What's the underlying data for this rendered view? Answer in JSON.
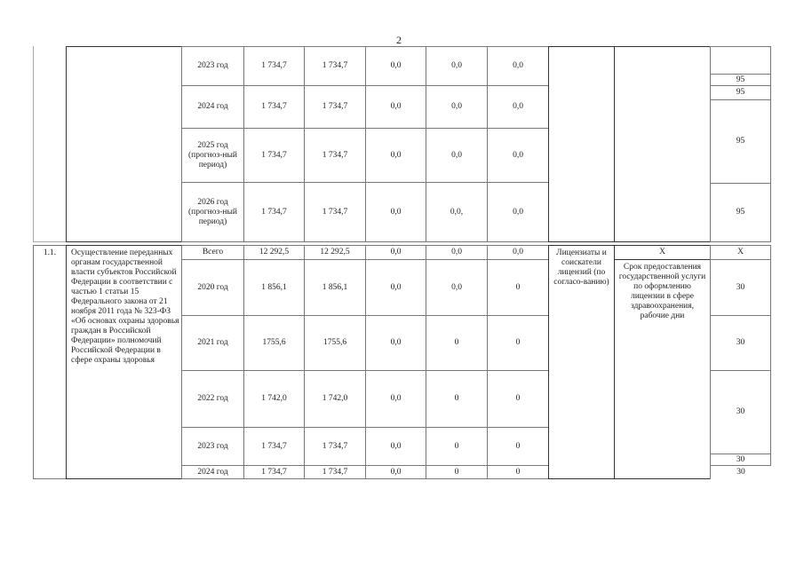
{
  "page_number": "2",
  "continued_section": {
    "rows": [
      {
        "year": "2023 год",
        "total": "1 734,7",
        "regional": "1 734,7",
        "c3": "0,0",
        "c4": "0,0",
        "c5": "0,0"
      },
      {
        "year": "2024 год",
        "total": "1 734,7",
        "regional": "1 734,7",
        "c3": "0,0",
        "c4": "0,0",
        "c5": "0,0"
      },
      {
        "year": "2025 год (прогноз-ный период)",
        "total": "1 734,7",
        "regional": "1 734,7",
        "c3": "0,0",
        "c4": "0,0",
        "c5": "0,0"
      },
      {
        "year": "2026 год (прогноз-ный период)",
        "total": "1 734,7",
        "regional": "1 734,7",
        "c3": "0,0",
        "c4": "0,0,",
        "c5": "0,0"
      }
    ],
    "indicator_values": [
      "",
      "95",
      "95",
      "95",
      "95"
    ]
  },
  "section_1_1": {
    "number": "1.1.",
    "description": "Осуществление переданных органам государственной власти субъектов Российской Федерации в соответствии с частью 1 статьи 15 Федерального закона от 21 ноября 2011 года № 323-ФЗ «Об основах охраны здоровья граждан в Российской Федерации» полномочий Российской Федерации в сфере охраны здоровья",
    "participants": "Лицензиаты и соискатели лицензий (по согласо-ванию)",
    "indicator_total": "Х",
    "indicator_name": "Срок предоставления государственной услуги по оформлению лицензии в сфере здравоохранения, рабочие дни",
    "rows": [
      {
        "year": "Всего",
        "total": "12 292,5",
        "regional": "12 292,5",
        "c3": "0,0",
        "c4": "0,0",
        "c5": "0,0"
      },
      {
        "year": "2020 год",
        "total": "1 856,1",
        "regional": "1 856,1",
        "c3": "0,0",
        "c4": "0,0",
        "c5": "0"
      },
      {
        "year": "2021 год",
        "total": "1755,6",
        "regional": "1755,6",
        "c3": "0,0",
        "c4": "0",
        "c5": "0"
      },
      {
        "year": "2022 год",
        "total": "1 742,0",
        "regional": "1 742,0",
        "c3": "0,0",
        "c4": "0",
        "c5": "0"
      },
      {
        "year": "2023 год",
        "total": "1 734,7",
        "regional": "1 734,7",
        "c3": "0,0",
        "c4": "0",
        "c5": "0"
      },
      {
        "year": "2024 год",
        "total": "1 734,7",
        "regional": "1 734,7",
        "c3": "0,0",
        "c4": "0",
        "c5": "0"
      }
    ],
    "indicator_values": [
      "Х",
      "30",
      "30",
      "30",
      "30",
      "30"
    ]
  }
}
